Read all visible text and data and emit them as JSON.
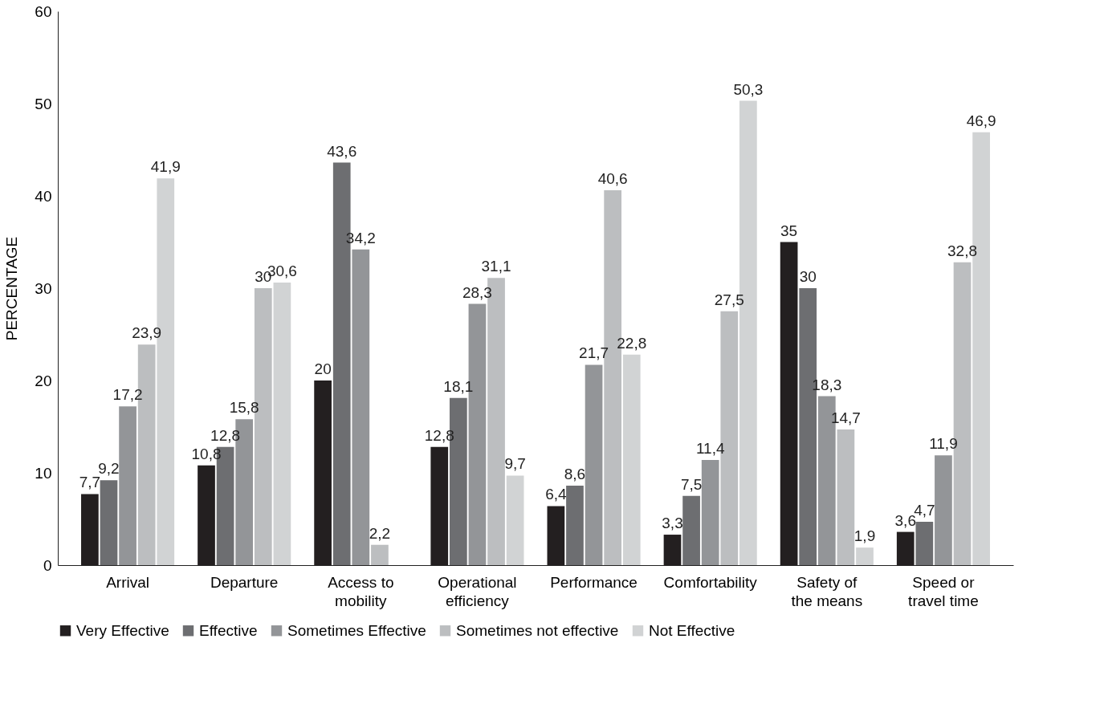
{
  "chart_data": {
    "type": "bar",
    "ylabel": "PERCENTAGE",
    "categories": [
      "Arrival",
      "Departure",
      "Access to mobility",
      "Operational efficiency",
      "Performance",
      "Comfortability",
      "Safety of the means",
      "Speed or travel time"
    ],
    "ylim": [
      0,
      60
    ],
    "yticks": [
      0,
      10,
      20,
      30,
      40,
      50,
      60
    ],
    "grid": false,
    "legend": "bottom",
    "series": [
      {
        "name": "Very Effective",
        "color": "#231f20",
        "values": [
          7.7,
          10.8,
          20,
          12.8,
          6.4,
          3.3,
          35,
          3.6
        ],
        "value_labels": [
          "7,7",
          "10,8",
          "20",
          "12,8",
          "6,4",
          "3,3",
          "35",
          "3,6"
        ]
      },
      {
        "name": "Effective",
        "color": "#6d6e71",
        "values": [
          9.2,
          12.8,
          43.6,
          18.1,
          8.6,
          7.5,
          30,
          4.7
        ],
        "value_labels": [
          "9,2",
          "12,8",
          "43,6",
          "18,1",
          "8,6",
          "7,5",
          "30",
          "4,7"
        ]
      },
      {
        "name": "Sometimes Effective",
        "color": "#939598",
        "values": [
          17.2,
          15.8,
          34.2,
          28.3,
          21.7,
          11.4,
          18.3,
          11.9
        ],
        "value_labels": [
          "17,2",
          "15,8",
          "34,2",
          "28,3",
          "21,7",
          "11,4",
          "18,3",
          "11,9"
        ]
      },
      {
        "name": "Sometimes not effective",
        "color": "#bcbec0",
        "values": [
          23.9,
          30,
          2.2,
          31.1,
          40.6,
          27.5,
          14.7,
          32.8
        ],
        "value_labels": [
          "23,9",
          "30",
          "2,2",
          "31,1",
          "40,6",
          "27,5",
          "14,7",
          "32,8"
        ]
      },
      {
        "name": "Not Effective",
        "color": "#d1d3d4",
        "values": [
          41.9,
          30.6,
          null,
          9.7,
          22.8,
          50.3,
          1.9,
          46.9
        ],
        "value_labels": [
          "41,9",
          "30,6",
          null,
          "9,7",
          "22,8",
          "50,3",
          "1,9",
          "46,9"
        ]
      }
    ]
  }
}
